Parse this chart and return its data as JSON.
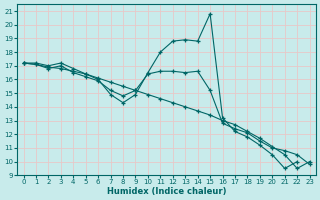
{
  "xlabel": "Humidex (Indice chaleur)",
  "bg_color": "#c8ebeb",
  "grid_color": "#e8c8c8",
  "line_color": "#006666",
  "xlim": [
    -0.5,
    23.5
  ],
  "ylim": [
    9,
    21.5
  ],
  "xticks": [
    0,
    1,
    2,
    3,
    4,
    5,
    6,
    7,
    8,
    9,
    10,
    11,
    12,
    13,
    14,
    15,
    16,
    17,
    18,
    19,
    20,
    21,
    22,
    23
  ],
  "yticks": [
    9,
    10,
    11,
    12,
    13,
    14,
    15,
    16,
    17,
    18,
    19,
    20,
    21
  ],
  "line1_x": [
    0,
    1,
    2,
    3,
    4,
    5,
    6,
    7,
    8,
    9,
    10,
    11,
    12,
    13,
    14,
    15,
    16,
    17,
    18,
    19,
    20,
    21,
    22
  ],
  "line1_y": [
    17.2,
    17.2,
    17.0,
    17.2,
    16.8,
    16.4,
    16.0,
    14.9,
    14.3,
    14.9,
    16.5,
    18.0,
    18.8,
    18.9,
    18.8,
    20.8,
    13.2,
    12.2,
    11.8,
    11.2,
    10.5,
    9.5,
    10.0
  ],
  "line2_x": [
    0,
    1,
    2,
    3,
    4,
    5,
    6,
    7,
    8,
    9,
    10,
    11,
    12,
    13,
    14,
    15,
    16,
    17,
    18,
    19,
    20,
    21,
    22,
    23
  ],
  "line2_y": [
    17.2,
    17.1,
    16.9,
    16.8,
    16.6,
    16.4,
    16.1,
    15.8,
    15.5,
    15.2,
    14.9,
    14.6,
    14.3,
    14.0,
    13.7,
    13.4,
    13.0,
    12.7,
    12.2,
    11.7,
    11.1,
    10.5,
    9.5,
    10.0
  ],
  "line3_x": [
    0,
    1,
    2,
    3,
    4,
    5,
    6,
    7,
    8,
    9,
    10,
    11,
    12,
    13,
    14,
    15,
    16,
    17,
    18,
    19,
    20,
    21,
    22,
    23
  ],
  "line3_y": [
    17.2,
    17.1,
    16.8,
    17.0,
    16.5,
    16.2,
    15.9,
    15.2,
    14.8,
    15.2,
    16.4,
    16.6,
    16.6,
    16.5,
    16.6,
    15.2,
    12.8,
    12.4,
    12.1,
    11.5,
    11.0,
    10.8,
    10.5,
    9.8
  ]
}
